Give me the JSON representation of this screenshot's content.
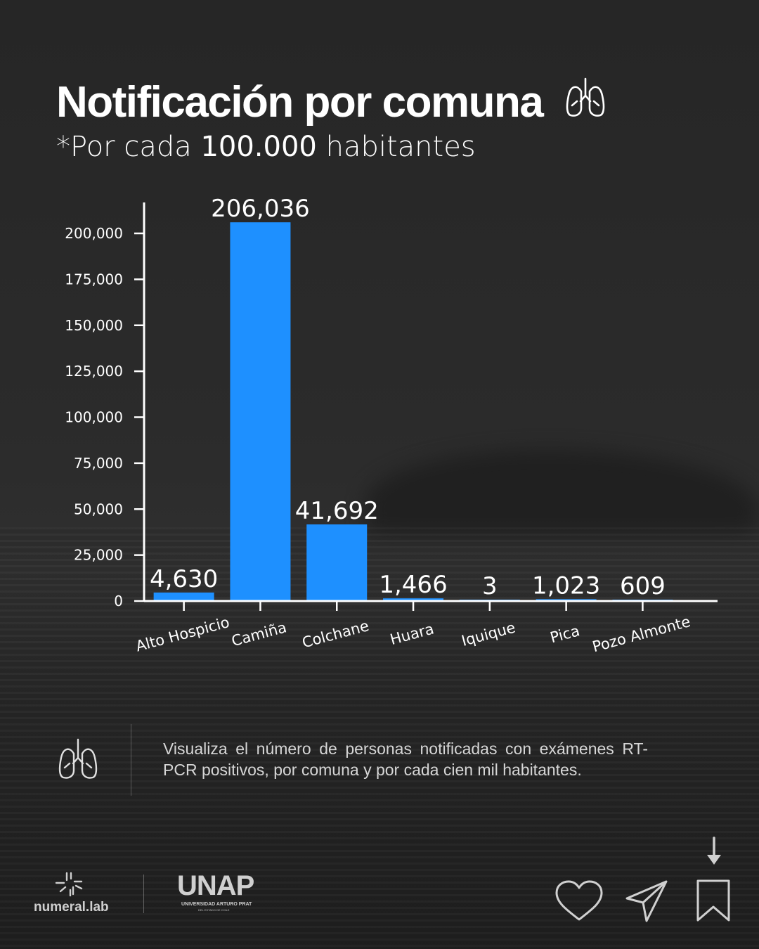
{
  "header": {
    "title": "Notificación por comuna",
    "subtitle_prefix": "*Por cada ",
    "subtitle_number": "100.000",
    "subtitle_suffix": " habitantes",
    "title_icon": "lungs-icon"
  },
  "chart_data": {
    "type": "bar",
    "categories": [
      "Alto Hospicio",
      "Camiña",
      "Colchane",
      "Huara",
      "Iquique",
      "Pica",
      "Pozo Almonte"
    ],
    "values": [
      4630,
      206036,
      41692,
      1466,
      3,
      1023,
      609
    ],
    "value_labels": [
      "4,630",
      "206,036",
      "41,692",
      "1,466",
      "3",
      "1,023",
      "609"
    ],
    "y_ticks": [
      0,
      25000,
      50000,
      75000,
      100000,
      125000,
      150000,
      175000,
      200000
    ],
    "y_tick_labels": [
      "0",
      "25,000",
      "50,000",
      "75,000",
      "100,000",
      "125,000",
      "150,000",
      "175,000",
      "200,000"
    ],
    "ylim": [
      0,
      210000
    ],
    "bar_color": "#1e90ff",
    "grid": false,
    "legend": "none"
  },
  "info": {
    "icon": "lungs-icon",
    "text": "Visualiza el número de personas notificadas con exámenes RT-PCR positivos, por comuna y por cada cien mil habitantes."
  },
  "footer": {
    "numeral_logo": "numeral.lab",
    "unap_logo": "UNAP",
    "unap_sub": "UNIVERSIDAD ARTURO PRAT",
    "unap_sub2": "DEL ESTADO DE CHILE",
    "actions": [
      "heart-icon",
      "send-icon",
      "bookmark-icon",
      "arrow-down-icon"
    ]
  }
}
